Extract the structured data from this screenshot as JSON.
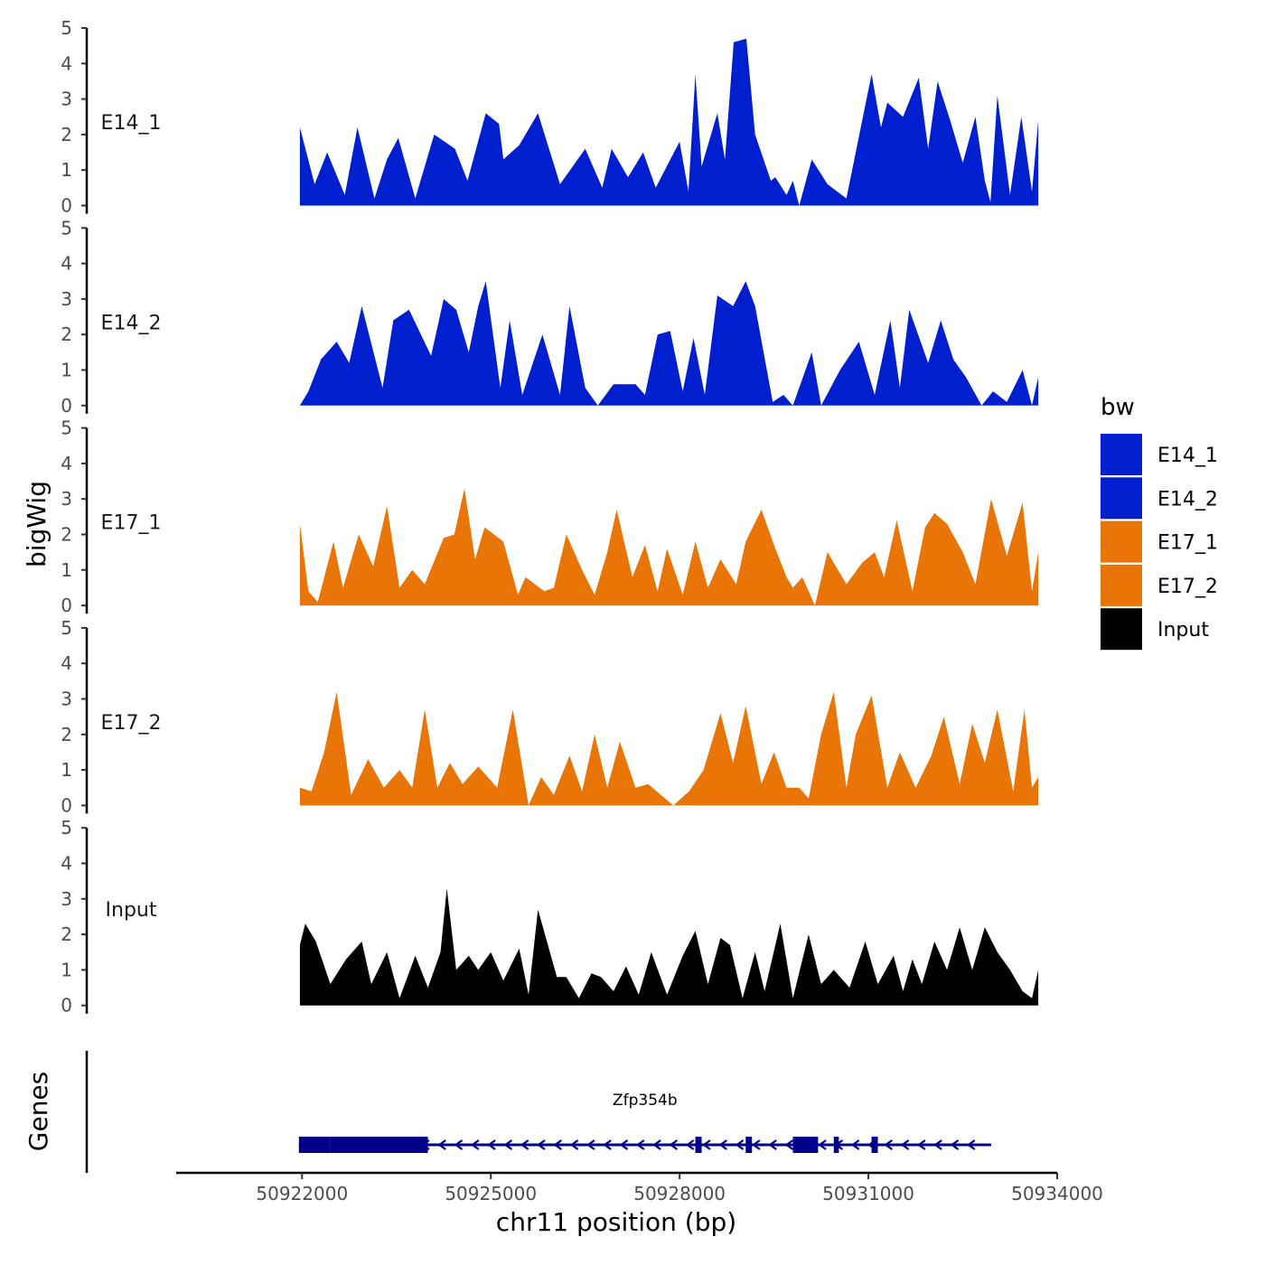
{
  "chart_data": {
    "type": "area",
    "ylabel": "bigWig",
    "xlabel": "chr11 position (bp)",
    "xlim": [
      50920000,
      50934000
    ],
    "ylim": [
      0,
      5
    ],
    "y_ticks": [
      0,
      1,
      2,
      3,
      4,
      5
    ],
    "x_ticks": [
      50922000,
      50925000,
      50928000,
      50931000,
      50934000
    ],
    "x_tick_labels": [
      "50922000",
      "50925000",
      "50928000",
      "50931000",
      "50934000"
    ],
    "tracks": [
      {
        "name": "E14_1",
        "label": "E14_1",
        "color": "#0020D0",
        "x": [
          50921966,
          50922200,
          50922400,
          50922680,
          50922880,
          50923150,
          50923350,
          50923530,
          50923800,
          50924100,
          50924430,
          50924630,
          50924920,
          50925130,
          50925200,
          50925450,
          50925750,
          50926100,
          50926500,
          50926770,
          50926920,
          50927180,
          50927420,
          50927620,
          50928000,
          50928140,
          50928250,
          50928350,
          50928600,
          50928720,
          50928860,
          50929060,
          50929200,
          50929450,
          50929520,
          50929700,
          50929800,
          50929900,
          50930100,
          50930350,
          50930650,
          50931050,
          50931200,
          50931300,
          50931550,
          50931800,
          50931950,
          50932100,
          50932300,
          50932500,
          50932700,
          50932850,
          50932940,
          50933050,
          50933250,
          50933430,
          50933600,
          50933700
        ],
        "values": [
          2.2,
          0.6,
          1.5,
          0.3,
          2.2,
          0.2,
          1.3,
          1.9,
          0.2,
          2.0,
          1.6,
          0.7,
          2.6,
          2.3,
          1.3,
          1.7,
          2.6,
          0.6,
          1.6,
          0.5,
          1.6,
          0.8,
          1.5,
          0.5,
          1.8,
          0.4,
          3.7,
          1.1,
          2.6,
          1.3,
          4.6,
          4.7,
          2.0,
          0.7,
          0.8,
          0.3,
          0.7,
          0.0,
          1.3,
          0.6,
          0.2,
          3.7,
          2.2,
          2.9,
          2.5,
          3.6,
          1.6,
          3.5,
          2.4,
          1.2,
          2.5,
          0.7,
          0.1,
          3.1,
          0.3,
          2.5,
          0.4,
          2.4
        ]
      },
      {
        "name": "E14_2",
        "label": "E14_2",
        "color": "#0020D0",
        "x": [
          50921966,
          50922100,
          50922300,
          50922550,
          50922750,
          50922950,
          50923280,
          50923450,
          50923700,
          50924050,
          50924250,
          50924450,
          50924650,
          50924800,
          50924920,
          50925150,
          50925300,
          50925500,
          50925820,
          50926100,
          50926250,
          50926500,
          50926700,
          50926950,
          50927300,
          50927450,
          50927650,
          50927850,
          50928050,
          50928220,
          50928400,
          50928600,
          50928850,
          50929050,
          50929200,
          50929480,
          50929650,
          50929800,
          50930100,
          50930250,
          50930550,
          50930850,
          50931100,
          50931350,
          50931500,
          50931650,
          50931950,
          50932150,
          50932350,
          50932550,
          50932800,
          50932980,
          50933200,
          50933450,
          50933600,
          50933700
        ],
        "values": [
          0.0,
          0.4,
          1.3,
          1.8,
          1.2,
          2.8,
          0.5,
          2.4,
          2.7,
          1.4,
          3.0,
          2.7,
          1.5,
          2.8,
          3.5,
          0.5,
          2.4,
          0.3,
          2.0,
          0.3,
          2.8,
          0.5,
          0.0,
          0.6,
          0.6,
          0.3,
          2.0,
          2.1,
          0.4,
          1.9,
          0.3,
          3.1,
          2.8,
          3.5,
          2.8,
          0.1,
          0.3,
          0.0,
          1.5,
          0.0,
          1.0,
          1.8,
          0.3,
          2.4,
          0.5,
          2.7,
          1.2,
          2.4,
          1.3,
          0.8,
          0.0,
          0.4,
          0.1,
          1.0,
          0.0,
          0.8
        ]
      },
      {
        "name": "E17_1",
        "label": "E17_1",
        "color": "#E87506",
        "x": [
          50921966,
          50922100,
          50922250,
          50922500,
          50922650,
          50922900,
          50923130,
          50923350,
          50923550,
          50923750,
          50923950,
          50924250,
          50924420,
          50924580,
          50924750,
          50924900,
          50925200,
          50925430,
          50925550,
          50925850,
          50926000,
          50926200,
          50926450,
          50926650,
          50926850,
          50927000,
          50927250,
          50927450,
          50927650,
          50927800,
          50928050,
          50928250,
          50928450,
          50928650,
          50928900,
          50929050,
          50929300,
          50929500,
          50929700,
          50929800,
          50929950,
          50930150,
          50930350,
          50930650,
          50930900,
          50931100,
          50931250,
          50931450,
          50931700,
          50931900,
          50932050,
          50932250,
          50932500,
          50932700,
          50932950,
          50933200,
          50933450,
          50933600,
          50933700
        ],
        "values": [
          2.3,
          0.4,
          0.1,
          1.8,
          0.5,
          2.0,
          1.1,
          2.8,
          0.5,
          1.0,
          0.6,
          1.9,
          2.0,
          3.3,
          1.3,
          2.2,
          1.8,
          0.3,
          0.8,
          0.4,
          0.5,
          2.0,
          1.0,
          0.3,
          1.5,
          2.7,
          0.8,
          1.7,
          0.4,
          1.6,
          0.3,
          1.8,
          0.5,
          1.3,
          0.6,
          1.8,
          2.7,
          1.7,
          0.8,
          0.5,
          0.8,
          0.0,
          1.5,
          0.6,
          1.2,
          1.5,
          0.8,
          2.4,
          0.4,
          2.2,
          2.6,
          2.3,
          1.5,
          0.6,
          3.0,
          1.4,
          2.9,
          0.4,
          1.5
        ]
      },
      {
        "name": "E17_2",
        "label": "E17_2",
        "color": "#E87506",
        "x": [
          50921966,
          50922150,
          50922350,
          50922550,
          50922780,
          50923050,
          50923300,
          50923550,
          50923750,
          50923950,
          50924150,
          50924350,
          50924550,
          50924800,
          50925100,
          50925350,
          50925600,
          50925800,
          50926000,
          50926250,
          50926450,
          50926650,
          50926850,
          50927050,
          50927300,
          50927500,
          50927700,
          50927900,
          50928150,
          50928380,
          50928650,
          50928850,
          50929050,
          50929300,
          50929500,
          50929700,
          50929900,
          50930050,
          50930250,
          50930450,
          50930650,
          50930800,
          50931050,
          50931300,
          50931500,
          50931750,
          50932000,
          50932200,
          50932450,
          50932650,
          50932850,
          50933050,
          50933300,
          50933480,
          50933600,
          50933700
        ],
        "values": [
          0.5,
          0.4,
          1.5,
          3.2,
          0.3,
          1.3,
          0.5,
          1.0,
          0.5,
          2.7,
          0.5,
          1.2,
          0.6,
          1.1,
          0.5,
          2.7,
          0.0,
          0.8,
          0.3,
          1.4,
          0.4,
          2.0,
          0.5,
          1.8,
          0.5,
          0.6,
          0.3,
          0.0,
          0.4,
          1.0,
          2.6,
          1.2,
          2.8,
          0.6,
          1.5,
          0.5,
          0.5,
          0.2,
          2.0,
          3.2,
          0.5,
          2.0,
          3.1,
          0.5,
          1.5,
          0.5,
          1.4,
          2.5,
          0.6,
          2.3,
          1.2,
          2.7,
          0.4,
          2.7,
          0.5,
          0.8
        ]
      },
      {
        "name": "Input",
        "label": "Input",
        "color": "#000000",
        "x": [
          50921966,
          50922050,
          50922220,
          50922450,
          50922700,
          50922950,
          50923100,
          50923350,
          50923550,
          50923800,
          50924000,
          50924200,
          50924300,
          50924450,
          50924650,
          50924800,
          50925000,
          50925200,
          50925450,
          50925600,
          50925750,
          50926050,
          50926200,
          50926400,
          50926600,
          50926750,
          50926950,
          50927150,
          50927350,
          50927550,
          50927800,
          50928050,
          50928250,
          50928450,
          50928650,
          50928800,
          50929000,
          50929200,
          50929350,
          50929600,
          50929800,
          50930050,
          50930250,
          50930450,
          50930700,
          50930950,
          50931150,
          50931400,
          50931550,
          50931700,
          50931850,
          50932050,
          50932250,
          50932450,
          50932650,
          50932850,
          50933050,
          50933250,
          50933450,
          50933600,
          50933700
        ],
        "values": [
          1.7,
          2.3,
          1.8,
          0.6,
          1.3,
          1.8,
          0.6,
          1.5,
          0.2,
          1.4,
          0.5,
          1.5,
          3.3,
          1.0,
          1.4,
          1.0,
          1.5,
          0.7,
          1.6,
          0.3,
          2.7,
          0.8,
          0.8,
          0.2,
          0.9,
          0.8,
          0.4,
          1.1,
          0.3,
          1.5,
          0.3,
          1.4,
          2.1,
          0.6,
          1.9,
          1.7,
          0.2,
          1.5,
          0.4,
          2.3,
          0.2,
          2.0,
          0.6,
          1.0,
          0.5,
          1.8,
          0.6,
          1.4,
          0.4,
          1.3,
          0.6,
          1.8,
          1.0,
          2.2,
          1.0,
          2.2,
          1.5,
          1.0,
          0.4,
          0.2,
          1.0
        ]
      }
    ],
    "genes_panel": {
      "label": "Genes",
      "color": "#00008B",
      "gene_name": "Zfp354b",
      "strand": "-",
      "start": 50921950,
      "end": 50932950,
      "exons": [
        [
          50921950,
          50922450
        ],
        [
          50922450,
          50924000
        ],
        [
          50928250,
          50928350
        ],
        [
          50929050,
          50929150
        ],
        [
          50929800,
          50930200
        ],
        [
          50930450,
          50930530
        ],
        [
          50931050,
          50931150
        ]
      ]
    },
    "legend": {
      "title": "bw",
      "position": "right",
      "entries": [
        {
          "label": "E14_1",
          "color": "#0020D0"
        },
        {
          "label": "E14_2",
          "color": "#0020D0"
        },
        {
          "label": "E17_1",
          "color": "#E87506"
        },
        {
          "label": "E17_2",
          "color": "#E87506"
        },
        {
          "label": "Input",
          "color": "#000000"
        }
      ]
    }
  }
}
